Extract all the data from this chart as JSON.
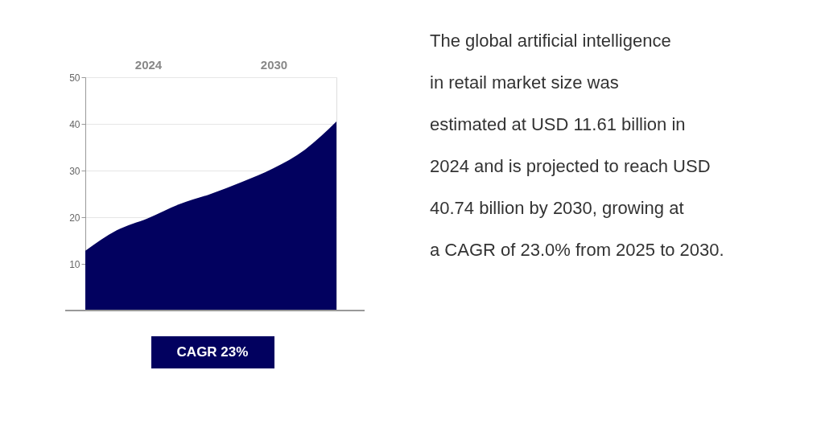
{
  "chart_data": {
    "type": "area",
    "categories": [
      null,
      null,
      "2024",
      null,
      null,
      null,
      "2030",
      null,
      null
    ],
    "series": [
      {
        "color": "#02015f",
        "values": [
          12.8,
          17.2,
          19.8,
          22.8,
          25.0,
          27.6,
          30.5,
          34.5,
          40.5
        ]
      }
    ],
    "ylim": [
      0,
      50
    ],
    "yticks": [
      10,
      20,
      30,
      40,
      50
    ],
    "grid": "y",
    "annotations": [
      "CAGR 23%",
      "The global artificial intelligence in retail market size was estimated at USD 11.61 billion in 2024 and is projected to reach USD 40.74 billion by 2030, growing at a CAGR of 23.0% from 2025 to 2030."
    ]
  }
}
